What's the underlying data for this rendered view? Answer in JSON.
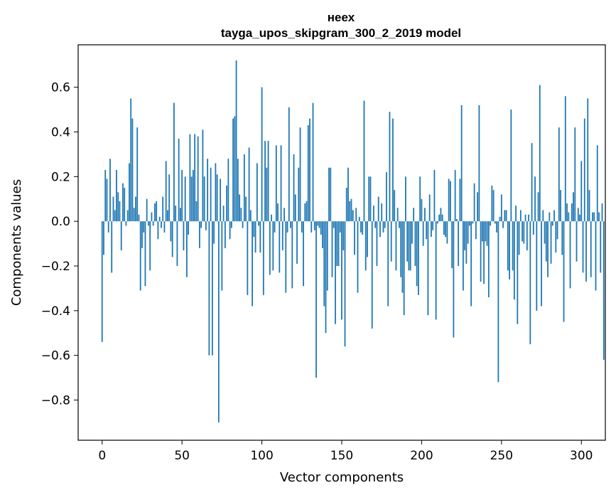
{
  "chart_data": {
    "type": "bar",
    "title_line1": "неех",
    "title_line2": "tayga_upos_skipgram_300_2_2019 model",
    "xlabel": "Vector components",
    "ylabel": "Components values",
    "xlim": [
      -15,
      315
    ],
    "ylim": [
      -0.98,
      0.79
    ],
    "xticks": [
      0,
      50,
      100,
      150,
      200,
      250,
      300
    ],
    "xtick_labels": [
      "0",
      "50",
      "100",
      "150",
      "200",
      "250",
      "300"
    ],
    "yticks": [
      -0.8,
      -0.6,
      -0.4,
      -0.2,
      0.0,
      0.2,
      0.4,
      0.6
    ],
    "ytick_labels": [
      "−0.8",
      "−0.6",
      "−0.4",
      "−0.2",
      "0.0",
      "0.2",
      "0.4",
      "0.6"
    ],
    "bar_color": "#1f77b4",
    "values": [
      -0.54,
      -0.15,
      0.23,
      0.19,
      -0.05,
      0.28,
      -0.23,
      0.11,
      0.05,
      0.23,
      0.13,
      0.09,
      -0.13,
      0.17,
      0.15,
      -0.02,
      0.05,
      0.26,
      0.55,
      0.46,
      0.06,
      0.11,
      0.42,
      0.03,
      -0.31,
      -0.12,
      -0.05,
      -0.29,
      0.1,
      -0.02,
      -0.22,
      0.04,
      -0.02,
      0.08,
      0.09,
      -0.08,
      0.02,
      -0.03,
      0.11,
      -0.05,
      0.27,
      0.05,
      0.21,
      -0.09,
      -0.16,
      0.53,
      0.07,
      -0.2,
      0.37,
      0.06,
      0.23,
      -0.13,
      0.2,
      -0.25,
      -0.06,
      0.39,
      0.2,
      0.23,
      0.39,
      0.09,
      0.38,
      -0.12,
      -0.03,
      0.41,
      0.2,
      -0.04,
      0.28,
      -0.6,
      0.24,
      -0.6,
      -0.1,
      0.26,
      0.21,
      -0.9,
      0.19,
      -0.31,
      0.07,
      -0.12,
      0.16,
      0.28,
      -0.08,
      -0.03,
      0.46,
      0.47,
      0.72,
      0.28,
      0.12,
      0.06,
      -0.03,
      0.3,
      0.11,
      -0.33,
      0.33,
      0.05,
      -0.38,
      -0.07,
      -0.14,
      0.26,
      -0.02,
      -0.14,
      0.6,
      -0.33,
      0.36,
      0.24,
      0.36,
      -0.24,
      0.03,
      -0.22,
      -0.05,
      0.34,
      0.08,
      -0.23,
      0.34,
      -0.13,
      0.06,
      -0.32,
      -0.05,
      0.51,
      -0.03,
      -0.3,
      0.3,
      0.12,
      -0.19,
      0.24,
      0.42,
      -0.05,
      -0.29,
      0.08,
      0.09,
      0.43,
      0.46,
      -0.05,
      0.53,
      -0.04,
      -0.7,
      -0.02,
      -0.03,
      -0.06,
      -0.12,
      -0.38,
      -0.5,
      -0.31,
      0.24,
      0.24,
      -0.25,
      -0.03,
      -0.46,
      -0.2,
      -0.2,
      -0.05,
      -0.44,
      -0.13,
      -0.56,
      0.15,
      0.24,
      0.09,
      0.1,
      0.05,
      -0.15,
      0.06,
      -0.32,
      0.02,
      -0.05,
      -0.06,
      0.54,
      -0.22,
      -0.16,
      0.2,
      0.2,
      -0.48,
      0.07,
      -0.03,
      -0.2,
      0.11,
      -0.07,
      0.08,
      -0.05,
      -0.03,
      0.22,
      -0.38,
      0.49,
      -0.18,
      0.46,
      0.14,
      -0.22,
      0.06,
      -0.03,
      -0.25,
      -0.32,
      -0.42,
      0.2,
      -0.18,
      -0.22,
      -0.22,
      -0.1,
      0.06,
      -0.2,
      -0.29,
      -0.33,
      0.2,
      0.1,
      -0.11,
      0.06,
      -0.08,
      -0.42,
      0.12,
      -0.07,
      -0.04,
      0.23,
      -0.44,
      -0.01,
      0.03,
      0.06,
      0.03,
      -0.06,
      -0.07,
      -0.1,
      0.19,
      0.18,
      -0.21,
      -0.52,
      0.23,
      0.01,
      -0.2,
      0.19,
      0.52,
      -0.31,
      -0.13,
      -0.19,
      -0.1,
      -0.02,
      -0.38,
      -0.01,
      0.17,
      -0.08,
      0.13,
      0.52,
      -0.27,
      -0.09,
      -0.28,
      -0.09,
      -0.11,
      -0.34,
      -0.02,
      0.16,
      0.14,
      -0.01,
      -0.05,
      -0.72,
      0.02,
      0.12,
      -0.03,
      0.05,
      0.05,
      -0.22,
      -0.26,
      0.5,
      -0.22,
      -0.35,
      0.07,
      -0.46,
      -0.15,
      0.05,
      -0.09,
      -0.1,
      0.03,
      -0.13,
      0.03,
      -0.55,
      0.35,
      -0.06,
      0.2,
      -0.4,
      0.13,
      0.61,
      -0.38,
      0.05,
      -0.1,
      -0.18,
      -0.25,
      0.04,
      -0.19,
      -0.02,
      0.05,
      -0.14,
      -0.08,
      0.42,
      0.14,
      -0.15,
      -0.45,
      0.56,
      0.08,
      0.04,
      -0.3,
      0.08,
      0.13,
      0.42,
      -0.18,
      0.06,
      0.03,
      0.27,
      -0.23,
      0.46,
      -0.27,
      0.55,
      0.14,
      -0.25,
      0.04,
      0.04,
      -0.31,
      0.34,
      0.04,
      -0.23,
      0.08,
      -0.62
    ]
  }
}
